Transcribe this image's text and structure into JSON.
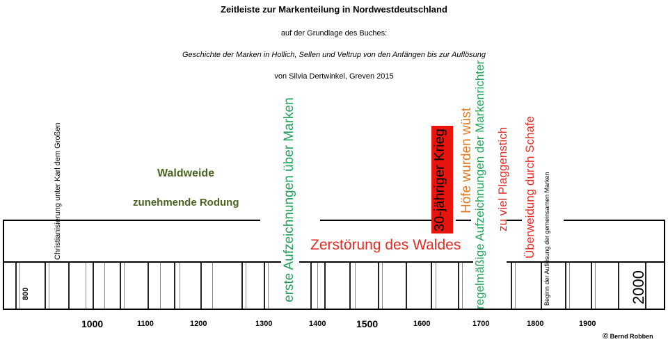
{
  "header": {
    "title": "Zeitleiste zur Markenteilung in Nordwestdeutschland",
    "line1": "auf der Grundlage des Buches:",
    "line2": "Geschichte der Marken in Hollich, Sellen und Veltrup von den Anfängen bis zur Auflösung",
    "line3": "von Silvia Dertwinkel, Greven 2015"
  },
  "labels": {
    "christianisierung": "Christianisierung unter Karl dem Großen",
    "waldweide": "Waldweide",
    "rodung": "zunehmende Rodung",
    "erste": "erste Aufzeichnungen über Marken",
    "zerstoerung": "Zerstörung des Waldes",
    "krieg": "30-jähriger Krieg",
    "hoefe": "Höfe wurden wüst",
    "regel": "regelmäßige Aufzeichnungen der Markenrichter",
    "plaggen": "zu viel Plaggenstich",
    "ueberweidung": "Überweidung durch Schafe",
    "beginn": "Beginn der Auflösung der gemeinsamen Marken",
    "y800": "800",
    "y2000": "2000"
  },
  "axis": {
    "years": [
      "1000",
      "1100",
      "1200",
      "1300",
      "1400",
      "1500",
      "1600",
      "1700",
      "1800",
      "1900"
    ]
  },
  "colors": {
    "green": "#22a05a",
    "olive": "#4a6320",
    "red": "#e52a25",
    "orange": "#e07b24",
    "war_box": "#e8150f"
  },
  "credit": {
    "symbol": "©",
    "name": "Bernd Robben"
  }
}
